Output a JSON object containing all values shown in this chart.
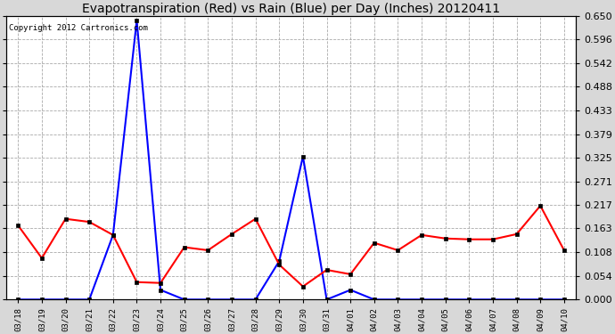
{
  "title": "Evapotranspiration (Red) vs Rain (Blue) per Day (Inches) 20120411",
  "copyright": "Copyright 2012 Cartronics.com",
  "x_labels": [
    "03/18",
    "03/19",
    "03/20",
    "03/21",
    "03/22",
    "03/23",
    "03/24",
    "03/25",
    "03/26",
    "03/27",
    "03/28",
    "03/29",
    "03/30",
    "03/31",
    "04/01",
    "04/02",
    "04/03",
    "04/04",
    "04/05",
    "04/06",
    "04/07",
    "04/08",
    "04/09",
    "04/10"
  ],
  "red_values": [
    0.17,
    0.095,
    0.185,
    0.178,
    0.148,
    0.04,
    0.038,
    0.12,
    0.113,
    0.15,
    0.185,
    0.08,
    0.03,
    0.068,
    0.058,
    0.13,
    0.113,
    0.148,
    0.14,
    0.138,
    0.138,
    0.15,
    0.215,
    0.113
  ],
  "blue_values": [
    0.0,
    0.0,
    0.0,
    0.0,
    0.148,
    0.64,
    0.022,
    0.0,
    0.0,
    0.0,
    0.0,
    0.088,
    0.328,
    0.0,
    0.022,
    0.0,
    0.0,
    0.0,
    0.0,
    0.0,
    0.0,
    0.0,
    0.0,
    0.0
  ],
  "y_ticks": [
    0.0,
    0.054,
    0.108,
    0.163,
    0.217,
    0.271,
    0.325,
    0.379,
    0.433,
    0.488,
    0.542,
    0.596,
    0.65
  ],
  "ylim": [
    0.0,
    0.65
  ],
  "background_color": "#d8d8d8",
  "plot_bg_color": "#ffffff",
  "grid_color": "#aaaaaa",
  "red_color": "#ff0000",
  "blue_color": "#0000ff",
  "title_fontsize": 10,
  "copyright_fontsize": 6.5
}
